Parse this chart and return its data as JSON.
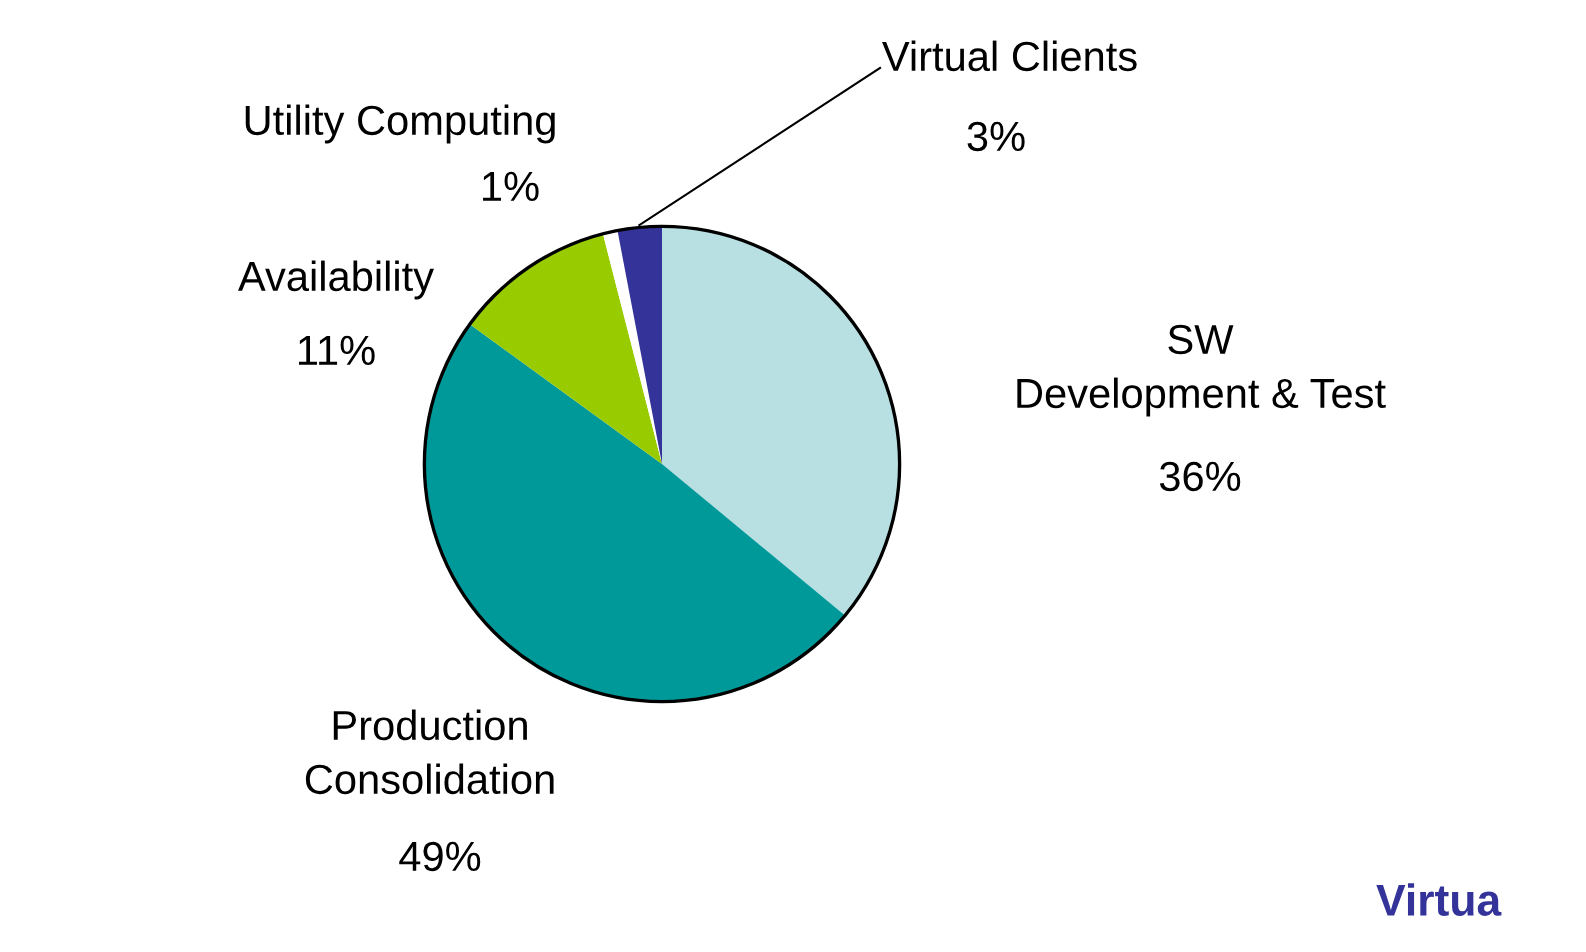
{
  "chart_data": {
    "type": "pie",
    "categories": [
      "SW\nDevelopment & Test",
      "Production\nConsolidation",
      "Availability",
      "Utility Computing",
      "Virtual Clients"
    ],
    "values": [
      36,
      49,
      11,
      1,
      3
    ],
    "value_labels": [
      "36%",
      "49%",
      "11%",
      "1%",
      "3%"
    ],
    "colors": [
      "#b8dfe2",
      "#009999",
      "#99cc00",
      "#ffffff",
      "#333399"
    ],
    "annotations": [
      "Virtua"
    ]
  }
}
